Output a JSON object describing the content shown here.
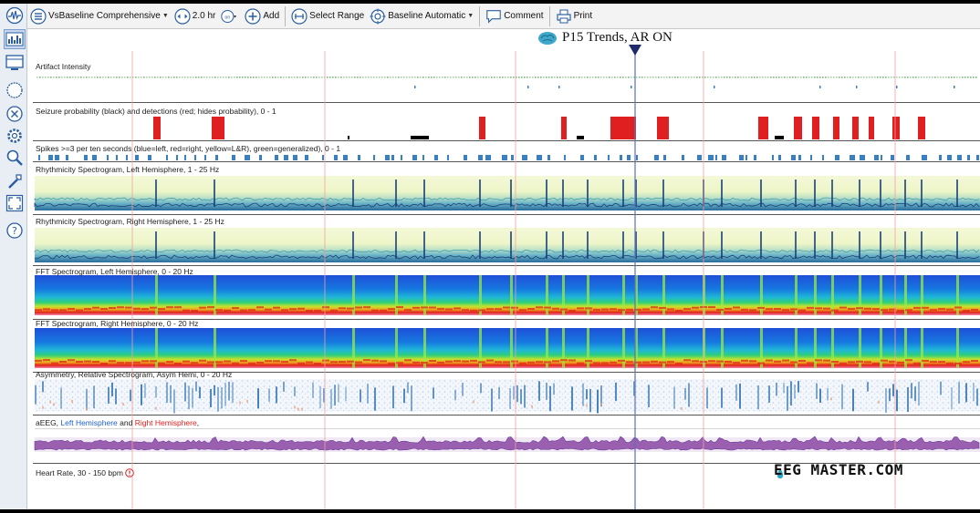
{
  "toolbar": {
    "view_label": "VsBaseline Comprehensive",
    "duration_label": "2.0 hr",
    "add_label": "Add",
    "select_range_label": "Select Range",
    "baseline_label": "Baseline Automatic",
    "comment_label": "Comment",
    "print_label": "Print"
  },
  "page": {
    "title": "P15 Trends, AR ON"
  },
  "lanes": {
    "artifact": "Artifact Intensity",
    "seizure": "Seizure probability (black) and detections (red; hides probability),  0 - 1",
    "spikes": "Spikes >=3 per ten seconds (blue=left, red=right, yellow=L&R), green=generalized),  0 - 1",
    "rhythm_left": "Rhythmicity Spectrogram, Left Hemisphere, 1 - 25 Hz",
    "rhythm_right": "Rhythmicity Spectrogram, Right Hemisphere, 1 - 25 Hz",
    "fft_left": "FFT Spectrogram, Left Hemisphere, 0 - 20 Hz",
    "fft_right": "FFT Spectrogram, Right Hemisphere, 0 - 20 Hz",
    "asym": "Asymmetry, Relative Spectrogram, Asym Hemi, 0 - 20 Hz",
    "aeeg_prefix": "aEEG, ",
    "aeeg_left": "Left Hemisphere",
    "aeeg_and": " and ",
    "aeeg_right": "Right Hemisphere",
    "aeeg_suffix": ",",
    "heart": "Heart Rate, 30 - 150 bpm"
  },
  "watermark": "EEG MASTER.COM",
  "colors": {
    "seizure_detection": "#e02020",
    "seizure_probability": "#000000",
    "spike_left": "#3a7fc0",
    "cursor": "#5b6fbf",
    "marker": "#f0a0a0",
    "aeeg_left": "#1f5fd0",
    "aeeg_right": "#e02020"
  },
  "icons": {
    "sidebar": [
      "eeg-wave-icon",
      "trends-view-icon",
      "review-view-icon",
      "circle-icon",
      "close-circle-icon",
      "settings-icon",
      "search-icon",
      "tools-icon",
      "fit-screen-icon",
      "help-icon"
    ],
    "toolbar": [
      "menu-icon",
      "duration-icon",
      "zoom-icon",
      "add-icon",
      "select-range-icon",
      "baseline-icon",
      "comment-icon",
      "print-icon"
    ]
  }
}
